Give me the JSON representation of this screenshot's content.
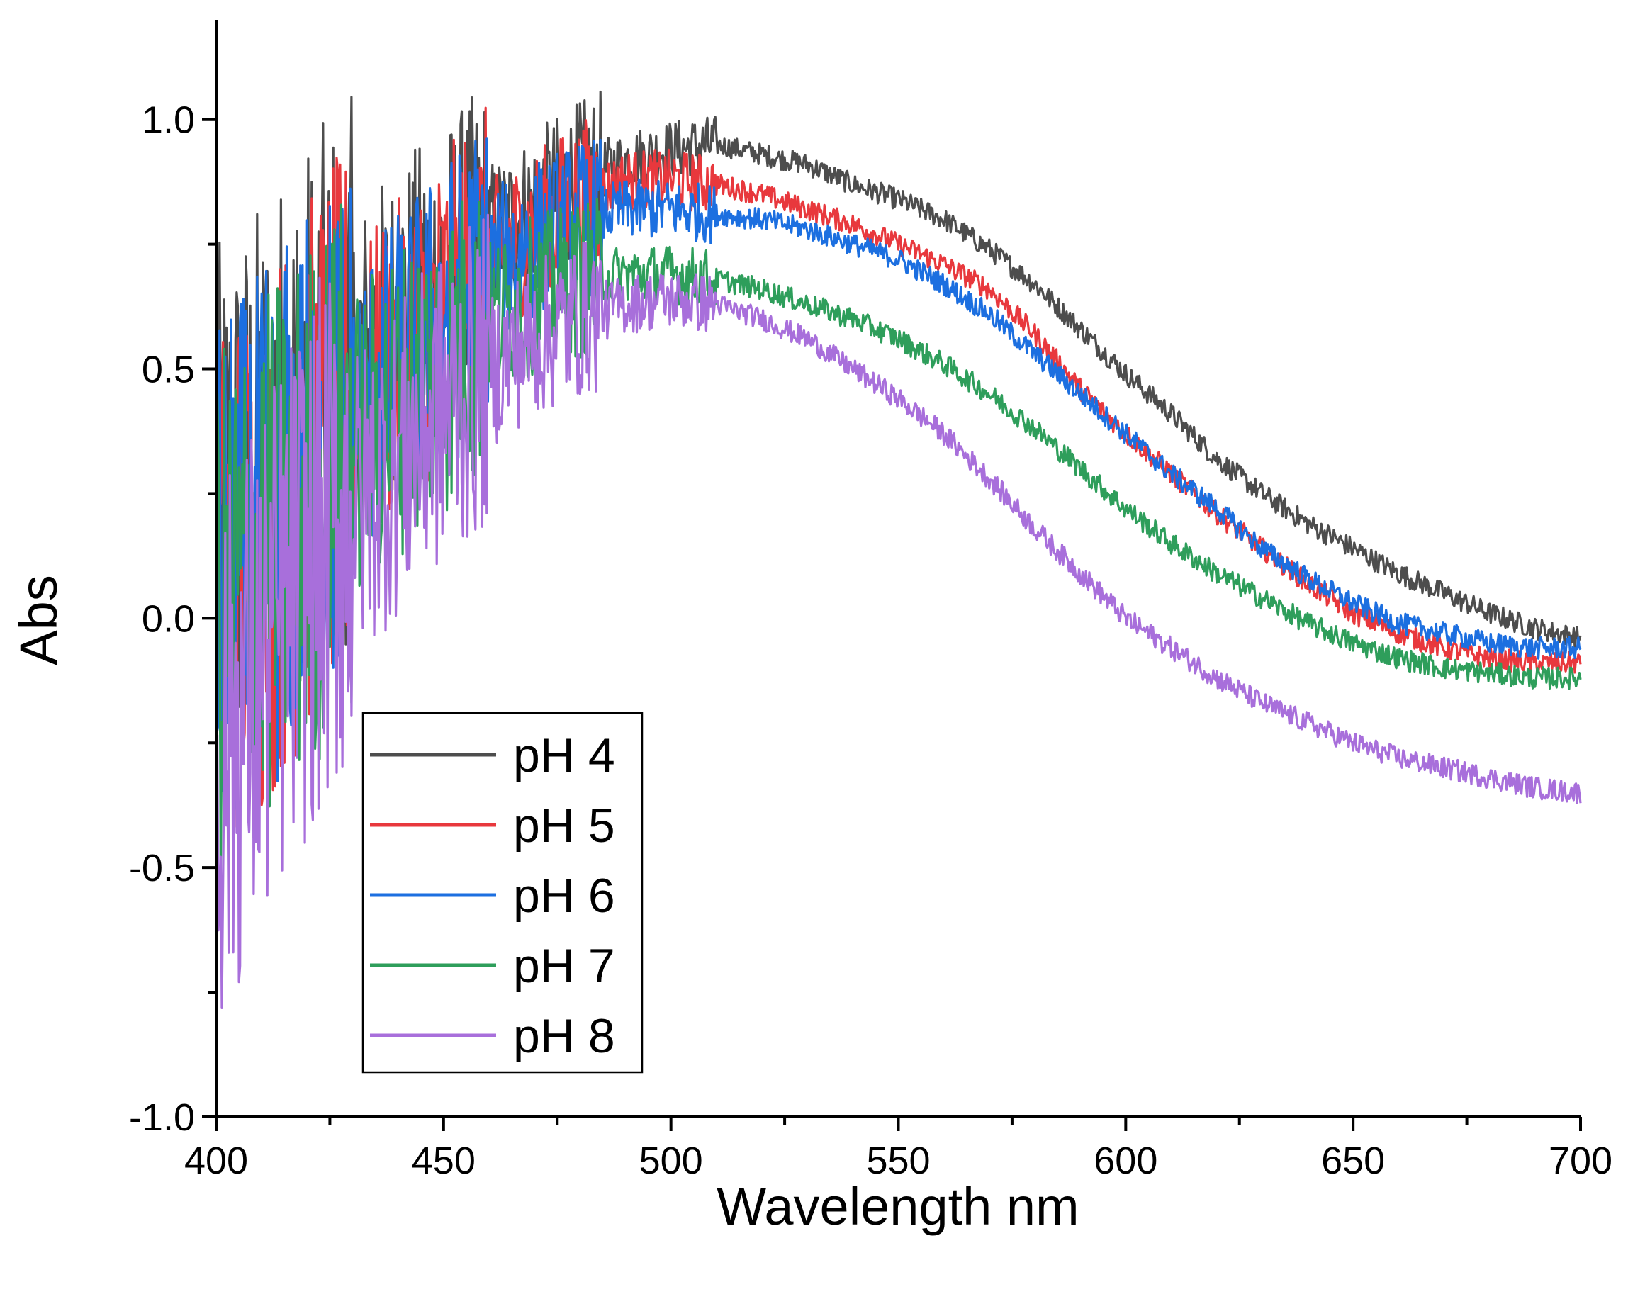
{
  "chart_data": {
    "type": "line",
    "title": "",
    "xlabel": "Wavelength nm",
    "ylabel": "Abs",
    "xlim": [
      400,
      700
    ],
    "ylim": [
      -1.0,
      1.2
    ],
    "x_ticks": [
      400,
      450,
      500,
      550,
      600,
      650,
      700
    ],
    "x_tick_labels": [
      "400",
      "450",
      "500",
      "550",
      "600",
      "650",
      "700"
    ],
    "y_ticks": [
      -1.0,
      -0.5,
      0.0,
      0.5,
      1.0
    ],
    "y_tick_labels": [
      "-1.0",
      "-0.5",
      "0.0",
      "0.5",
      "1.0"
    ],
    "grid": false,
    "legend_position": "bottom-left",
    "noise_note": "high-frequency noise below ~480 nm",
    "series": [
      {
        "name": "pH 4",
        "color": "#4d4d4d",
        "x": [
          400,
          410,
          420,
          430,
          440,
          450,
          460,
          470,
          480,
          490,
          500,
          510,
          520,
          530,
          540,
          550,
          560,
          570,
          580,
          590,
          600,
          610,
          620,
          630,
          640,
          650,
          660,
          670,
          680,
          690,
          700
        ],
        "y": [
          0.2,
          0.3,
          0.42,
          0.5,
          0.6,
          0.68,
          0.76,
          0.82,
          0.88,
          0.92,
          0.94,
          0.95,
          0.93,
          0.91,
          0.87,
          0.84,
          0.8,
          0.74,
          0.67,
          0.58,
          0.49,
          0.41,
          0.32,
          0.25,
          0.19,
          0.14,
          0.09,
          0.05,
          0.01,
          -0.02,
          -0.04
        ]
      },
      {
        "name": "pH 5",
        "color": "#e8383d",
        "x": [
          400,
          410,
          420,
          430,
          440,
          450,
          460,
          470,
          480,
          490,
          500,
          510,
          520,
          530,
          540,
          550,
          560,
          570,
          580,
          590,
          600,
          610,
          620,
          630,
          640,
          650,
          660,
          670,
          680,
          690,
          700
        ],
        "y": [
          0.05,
          0.15,
          0.3,
          0.42,
          0.52,
          0.62,
          0.72,
          0.78,
          0.84,
          0.88,
          0.88,
          0.87,
          0.85,
          0.82,
          0.79,
          0.75,
          0.71,
          0.66,
          0.57,
          0.46,
          0.37,
          0.29,
          0.21,
          0.14,
          0.07,
          0.01,
          -0.03,
          -0.06,
          -0.08,
          -0.09,
          -0.09
        ]
      },
      {
        "name": "pH 6",
        "color": "#1c6fe0",
        "x": [
          400,
          410,
          420,
          430,
          440,
          450,
          460,
          470,
          480,
          490,
          500,
          510,
          520,
          530,
          540,
          550,
          560,
          570,
          580,
          590,
          600,
          610,
          620,
          630,
          640,
          650,
          660,
          670,
          680,
          690,
          700
        ],
        "y": [
          0.05,
          0.15,
          0.28,
          0.4,
          0.5,
          0.6,
          0.7,
          0.76,
          0.8,
          0.82,
          0.82,
          0.81,
          0.8,
          0.78,
          0.75,
          0.72,
          0.67,
          0.61,
          0.53,
          0.45,
          0.37,
          0.29,
          0.22,
          0.14,
          0.08,
          0.03,
          -0.01,
          -0.03,
          -0.05,
          -0.06,
          -0.06
        ]
      },
      {
        "name": "pH 7",
        "color": "#2e9e5b",
        "x": [
          400,
          410,
          420,
          430,
          440,
          450,
          460,
          470,
          480,
          490,
          500,
          510,
          520,
          530,
          540,
          550,
          560,
          570,
          580,
          590,
          600,
          610,
          620,
          630,
          640,
          650,
          660,
          670,
          680,
          690,
          700
        ],
        "y": [
          0.0,
          0.1,
          0.22,
          0.34,
          0.44,
          0.52,
          0.6,
          0.65,
          0.68,
          0.69,
          0.69,
          0.68,
          0.66,
          0.63,
          0.6,
          0.56,
          0.51,
          0.45,
          0.38,
          0.3,
          0.22,
          0.15,
          0.09,
          0.04,
          -0.01,
          -0.05,
          -0.08,
          -0.1,
          -0.11,
          -0.12,
          -0.12
        ]
      },
      {
        "name": "pH 8",
        "color": "#a86fdb",
        "x": [
          400,
          410,
          420,
          430,
          440,
          450,
          460,
          470,
          480,
          490,
          500,
          510,
          520,
          530,
          540,
          550,
          560,
          570,
          580,
          590,
          600,
          610,
          620,
          630,
          640,
          650,
          660,
          670,
          680,
          690,
          700
        ],
        "y": [
          -0.3,
          -0.1,
          0.1,
          0.22,
          0.32,
          0.42,
          0.5,
          0.56,
          0.6,
          0.63,
          0.64,
          0.63,
          0.6,
          0.56,
          0.5,
          0.44,
          0.37,
          0.28,
          0.18,
          0.09,
          0.0,
          -0.06,
          -0.12,
          -0.17,
          -0.21,
          -0.25,
          -0.28,
          -0.3,
          -0.32,
          -0.34,
          -0.35
        ]
      }
    ]
  }
}
